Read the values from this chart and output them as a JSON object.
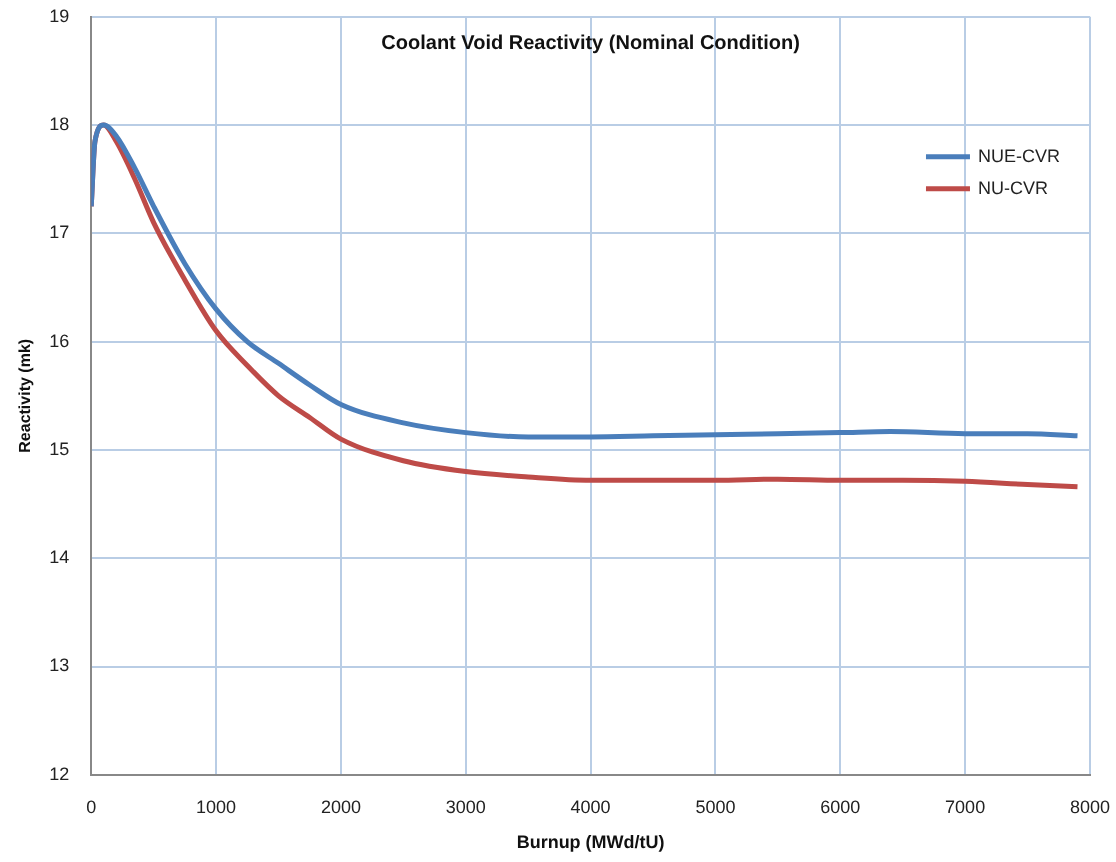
{
  "chart_data": {
    "type": "line",
    "title": "Coolant Void Reactivity (Nominal Condition)",
    "xlabel": "Burnup (MWd/tU)",
    "ylabel": "Reactivity (mk)",
    "xlim": [
      0,
      8000
    ],
    "xticks": [
      0,
      1000,
      2000,
      3000,
      4000,
      5000,
      6000,
      7000,
      8000
    ],
    "ylim": [
      12,
      19
    ],
    "yticks": [
      12,
      13,
      14,
      15,
      16,
      17,
      18,
      19
    ],
    "grid": true,
    "legend": "top right",
    "marker": "none",
    "line_style": "solid",
    "series": [
      {
        "name": "NUE-CVR",
        "color": "#4a7ebb",
        "x": [
          0,
          30,
          100,
          200,
          350,
          500,
          750,
          1000,
          1250,
          1500,
          1750,
          2000,
          2500,
          3000,
          3500,
          4000,
          4500,
          5000,
          5500,
          6000,
          6400,
          7000,
          7500,
          7900
        ],
        "values": [
          17.25,
          17.85,
          18.0,
          17.9,
          17.6,
          17.25,
          16.72,
          16.3,
          16.0,
          15.8,
          15.6,
          15.42,
          15.25,
          15.16,
          15.12,
          15.12,
          15.13,
          15.14,
          15.15,
          15.16,
          15.17,
          15.15,
          15.15,
          15.13
        ]
      },
      {
        "name": "NU-CVR",
        "color": "#be4b48",
        "x": [
          0,
          30,
          100,
          200,
          350,
          500,
          750,
          1000,
          1250,
          1500,
          1750,
          2000,
          2500,
          3000,
          3500,
          4000,
          4500,
          5000,
          5500,
          6000,
          6500,
          7000,
          7500,
          7900
        ],
        "values": [
          17.25,
          17.85,
          18.0,
          17.85,
          17.5,
          17.1,
          16.57,
          16.1,
          15.78,
          15.5,
          15.3,
          15.1,
          14.9,
          14.8,
          14.75,
          14.72,
          14.72,
          14.72,
          14.73,
          14.72,
          14.72,
          14.71,
          14.68,
          14.66
        ]
      }
    ]
  }
}
